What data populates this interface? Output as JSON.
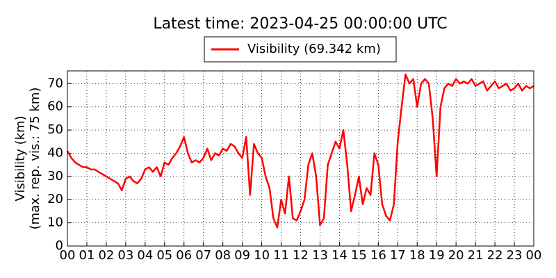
{
  "chart_data": {
    "type": "line",
    "title": "Latest time: 2023-04-25 00:00:00 UTC",
    "ylabel": [
      "Visibility (km)",
      "(max. rep. vis.: 75 km)"
    ],
    "x": [
      0,
      0.2,
      0.4,
      0.6,
      0.8,
      1,
      1.2,
      1.4,
      1.6,
      1.8,
      2,
      2.2,
      2.4,
      2.6,
      2.8,
      3,
      3.2,
      3.4,
      3.6,
      3.8,
      4,
      4.2,
      4.4,
      4.6,
      4.8,
      5,
      5.2,
      5.4,
      5.6,
      5.8,
      6,
      6.2,
      6.4,
      6.6,
      6.8,
      7,
      7.2,
      7.4,
      7.6,
      7.8,
      8,
      8.2,
      8.4,
      8.6,
      8.8,
      9,
      9.2,
      9.4,
      9.6,
      9.8,
      10,
      10.2,
      10.4,
      10.6,
      10.8,
      11,
      11.2,
      11.4,
      11.6,
      11.8,
      12,
      12.2,
      12.4,
      12.6,
      12.8,
      13,
      13.2,
      13.4,
      13.6,
      13.8,
      14,
      14.2,
      14.4,
      14.6,
      14.8,
      15,
      15.2,
      15.4,
      15.6,
      15.8,
      16,
      16.2,
      16.4,
      16.6,
      16.8,
      17,
      17.2,
      17.4,
      17.6,
      17.8,
      18,
      18.2,
      18.4,
      18.6,
      18.8,
      19,
      19.2,
      19.4,
      19.6,
      19.8,
      20,
      20.2,
      20.4,
      20.6,
      20.8,
      21,
      21.2,
      21.4,
      21.6,
      21.8,
      22,
      22.2,
      22.4,
      22.6,
      22.8,
      23,
      23.2,
      23.4,
      23.6,
      23.8,
      24
    ],
    "series": [
      {
        "name": "Visibility (69.342 km)",
        "color": "#ff0000",
        "values": [
          41,
          38,
          36,
          35,
          34,
          34,
          33,
          33,
          32,
          31,
          30,
          29,
          28,
          27,
          24,
          29,
          30,
          28,
          27,
          29,
          33,
          34,
          32,
          34,
          30,
          36,
          35,
          38,
          40,
          43,
          47,
          40,
          36,
          37,
          36,
          38,
          42,
          37,
          40,
          39,
          42,
          41,
          44,
          43,
          40,
          38,
          47,
          22,
          44,
          40,
          38,
          30,
          25,
          12,
          8,
          20,
          14,
          30,
          12,
          11,
          15,
          20,
          35,
          40,
          30,
          9,
          12,
          35,
          40,
          45,
          42,
          50,
          35,
          15,
          22,
          30,
          18,
          25,
          22,
          40,
          35,
          18,
          13,
          11,
          18,
          45,
          60,
          74,
          70,
          72,
          60,
          70,
          72,
          70,
          55,
          30,
          60,
          68,
          70,
          69,
          72,
          70,
          71,
          70,
          72,
          69,
          70,
          71,
          67,
          69,
          71,
          68,
          69,
          70,
          67,
          68,
          70,
          67,
          69,
          68,
          69
        ]
      }
    ],
    "xlim": [
      0,
      24
    ],
    "xticks": [
      {
        "value": 0,
        "label": "00"
      },
      {
        "value": 1,
        "label": "01"
      },
      {
        "value": 2,
        "label": "02"
      },
      {
        "value": 3,
        "label": "03"
      },
      {
        "value": 4,
        "label": "04"
      },
      {
        "value": 5,
        "label": "05"
      },
      {
        "value": 6,
        "label": "06"
      },
      {
        "value": 7,
        "label": "07"
      },
      {
        "value": 8,
        "label": "08"
      },
      {
        "value": 9,
        "label": "09"
      },
      {
        "value": 10,
        "label": "10"
      },
      {
        "value": 11,
        "label": "11"
      },
      {
        "value": 12,
        "label": "12"
      },
      {
        "value": 13,
        "label": "13"
      },
      {
        "value": 14,
        "label": "14"
      },
      {
        "value": 15,
        "label": "15"
      },
      {
        "value": 16,
        "label": "16"
      },
      {
        "value": 17,
        "label": "17"
      },
      {
        "value": 18,
        "label": "18"
      },
      {
        "value": 19,
        "label": "19"
      },
      {
        "value": 20,
        "label": "20"
      },
      {
        "value": 21,
        "label": "21"
      },
      {
        "value": 22,
        "label": "22"
      },
      {
        "value": 23,
        "label": "23"
      },
      {
        "value": 24,
        "label": "00"
      }
    ],
    "ylim": [
      0,
      75.5
    ],
    "yticks": [
      0,
      10,
      20,
      30,
      40,
      50,
      60,
      70
    ],
    "grid": true,
    "legend": "top"
  }
}
